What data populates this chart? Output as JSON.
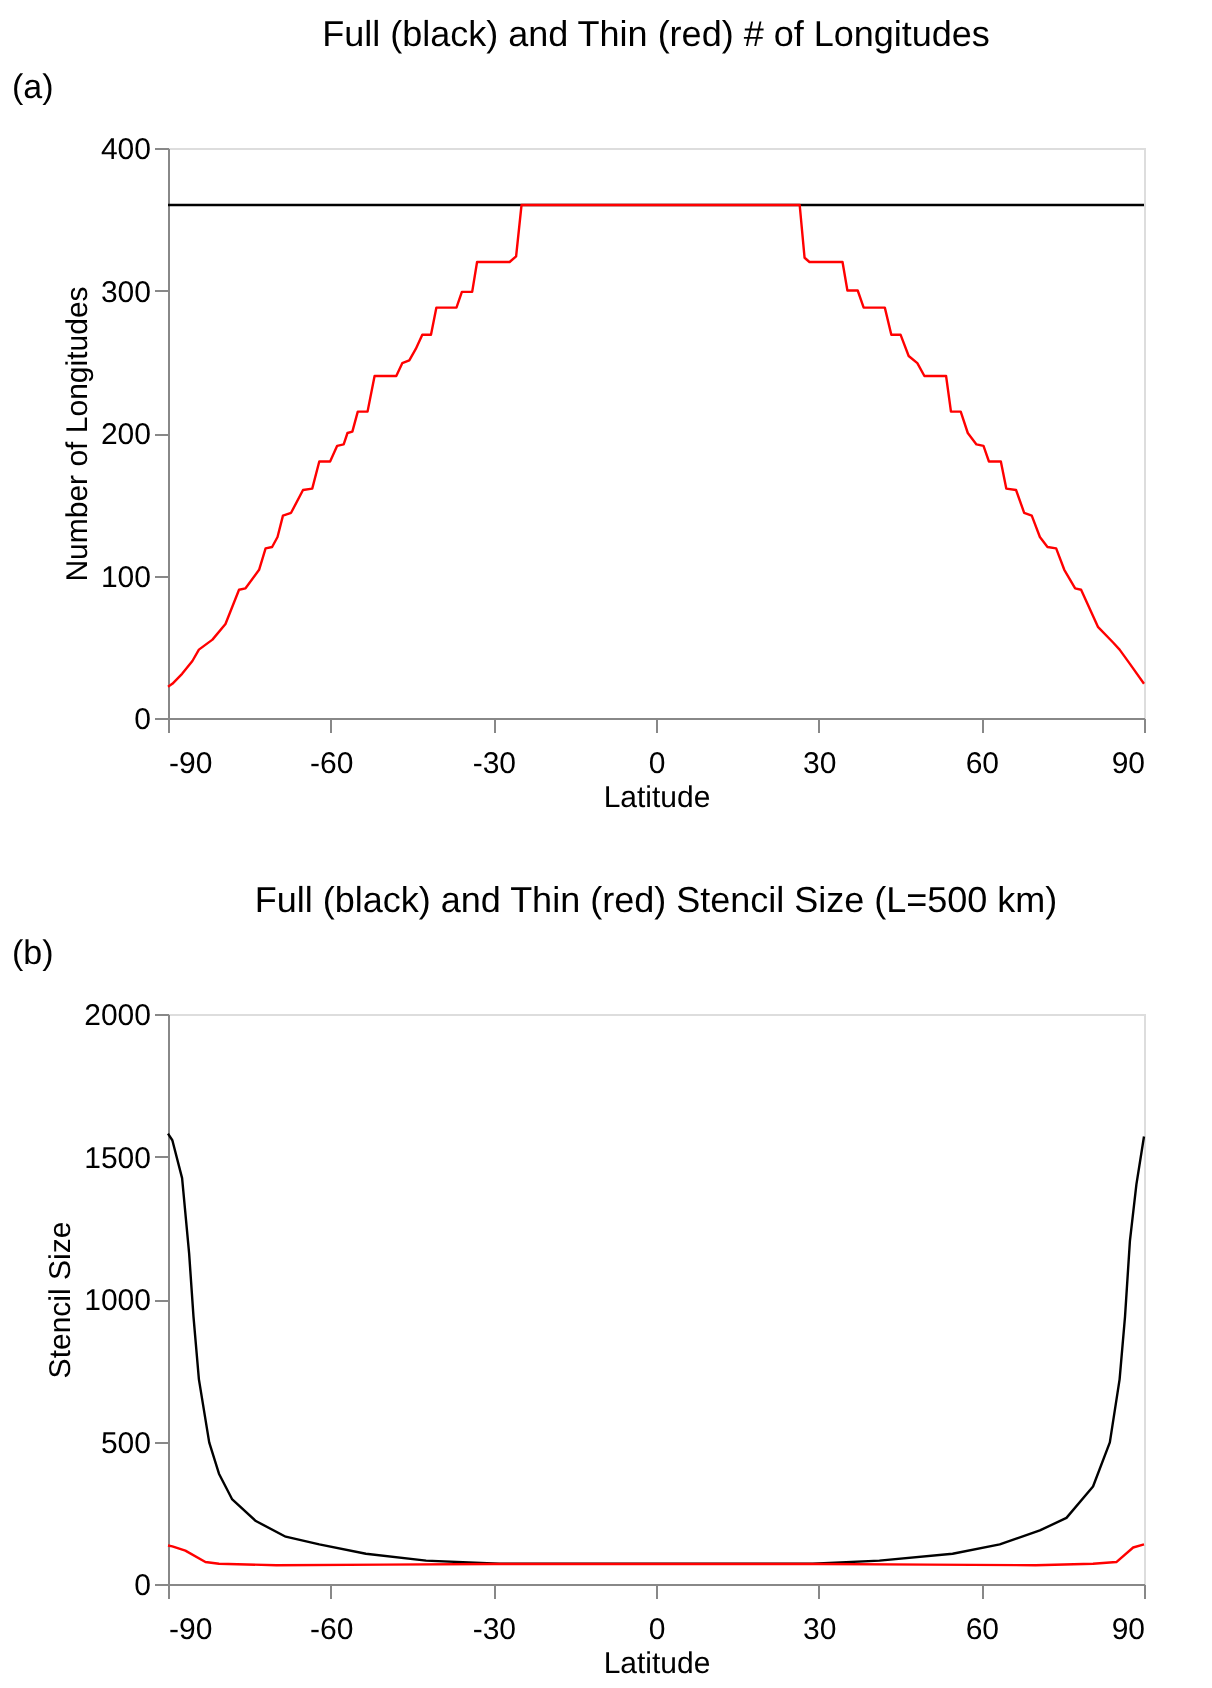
{
  "chart_data": [
    {
      "type": "line",
      "title": "Full (black) and Thin (red) # of Longitudes",
      "xlabel": "Latitude",
      "ylabel": "Number of Longitudes",
      "annotations": [
        "(a)"
      ],
      "xlim": [
        -90,
        90
      ],
      "xticks": [
        -90,
        -60,
        -30,
        0,
        30,
        60,
        90
      ],
      "ylim": [
        0,
        400
      ],
      "yticks": [
        0,
        100,
        200,
        300,
        400
      ],
      "grid": false,
      "series": [
        {
          "color": "#000000",
          "x": [
            -90,
            90
          ],
          "values": [
            360,
            360
          ]
        },
        {
          "color": "#ff0000",
          "x": [
            -90,
            -89.2,
            -87.4,
            -85.5,
            -84.3,
            -81.8,
            -79.4,
            -76.9,
            -75.7,
            -73.2,
            -72,
            -70.8,
            -69.8,
            -68.8,
            -67.3,
            -65.1,
            -63.4,
            -62.1,
            -60.1,
            -58.8,
            -57.6,
            -56.9,
            -56,
            -55,
            -53.2,
            -51.9,
            -47.9,
            -46.8,
            -45.5,
            -44.3,
            -43.1,
            -41.5,
            -40.5,
            -36.8,
            -35.8,
            -33.9,
            -33,
            -27,
            -25.8,
            -24.8,
            26.5,
            27.4,
            28.3,
            34.4,
            35.3,
            37.2,
            38.3,
            42.2,
            43.4,
            45.1,
            46.6,
            48.2,
            49.5,
            53.5,
            54.4,
            56.2,
            57.5,
            59.1,
            60.4,
            61.4,
            63.6,
            64.6,
            66.4,
            67.9,
            69.3,
            70.8,
            72.2,
            73.8,
            75.3,
            77.3,
            78.4,
            81.5,
            84.3,
            85.5,
            87.4,
            90
          ],
          "values": [
            22,
            24,
            31,
            40,
            48,
            55,
            66,
            90,
            91,
            104,
            119,
            120,
            127,
            142,
            144,
            160,
            161,
            180,
            180,
            191,
            192,
            200,
            201,
            215,
            215,
            240,
            240,
            249,
            251,
            259,
            269,
            269,
            288,
            288,
            299,
            299,
            320,
            320,
            324,
            360,
            360,
            323,
            320,
            320,
            300,
            300,
            288,
            288,
            269,
            269,
            254,
            249,
            240,
            240,
            215,
            215,
            200,
            192,
            191,
            180,
            180,
            161,
            160,
            144,
            142,
            127,
            120,
            119,
            104,
            91,
            90,
            64,
            53,
            48,
            38,
            24
          ]
        }
      ]
    },
    {
      "type": "line",
      "title": "Full (black) and Thin (red) Stencil Size (L=500 km)",
      "xlabel": "Latitude",
      "ylabel": "Stencil Size",
      "annotations": [
        "(b)"
      ],
      "xlim": [
        -90,
        90
      ],
      "xticks": [
        -90,
        -60,
        -30,
        0,
        30,
        60,
        90
      ],
      "ylim": [
        0,
        2000
      ],
      "yticks": [
        0,
        500,
        1000,
        1500,
        2000
      ],
      "grid": false,
      "series": [
        {
          "color": "#000000",
          "x": [
            -90,
            -89.2,
            -87.4,
            -86.1,
            -85.3,
            -84.3,
            -82.4,
            -80.6,
            -78.2,
            -73.8,
            -68.3,
            -62.1,
            -53.5,
            -42.4,
            -28.9,
            28.9,
            41.2,
            54.7,
            63.4,
            70.8,
            75.7,
            80.6,
            83.7,
            85.5,
            86.5,
            87.4,
            88.6,
            90
          ],
          "values": [
            1580,
            1557,
            1424,
            1159,
            938,
            718,
            497,
            387,
            298,
            221,
            166,
            139,
            106,
            82,
            71,
            71,
            82,
            106,
            139,
            188,
            232,
            342,
            497,
            718,
            938,
            1203,
            1402,
            1570
          ]
        },
        {
          "color": "#ff0000",
          "x": [
            -90,
            -89.2,
            -86.8,
            -83.1,
            -80.6,
            -70,
            -50,
            -30,
            0,
            30,
            50,
            70,
            80.6,
            84.9,
            88,
            90
          ],
          "values": [
            135,
            132,
            117,
            77,
            71,
            66,
            68,
            70,
            70,
            70,
            68,
            66,
            71,
            77,
            128,
            139
          ]
        }
      ]
    }
  ]
}
